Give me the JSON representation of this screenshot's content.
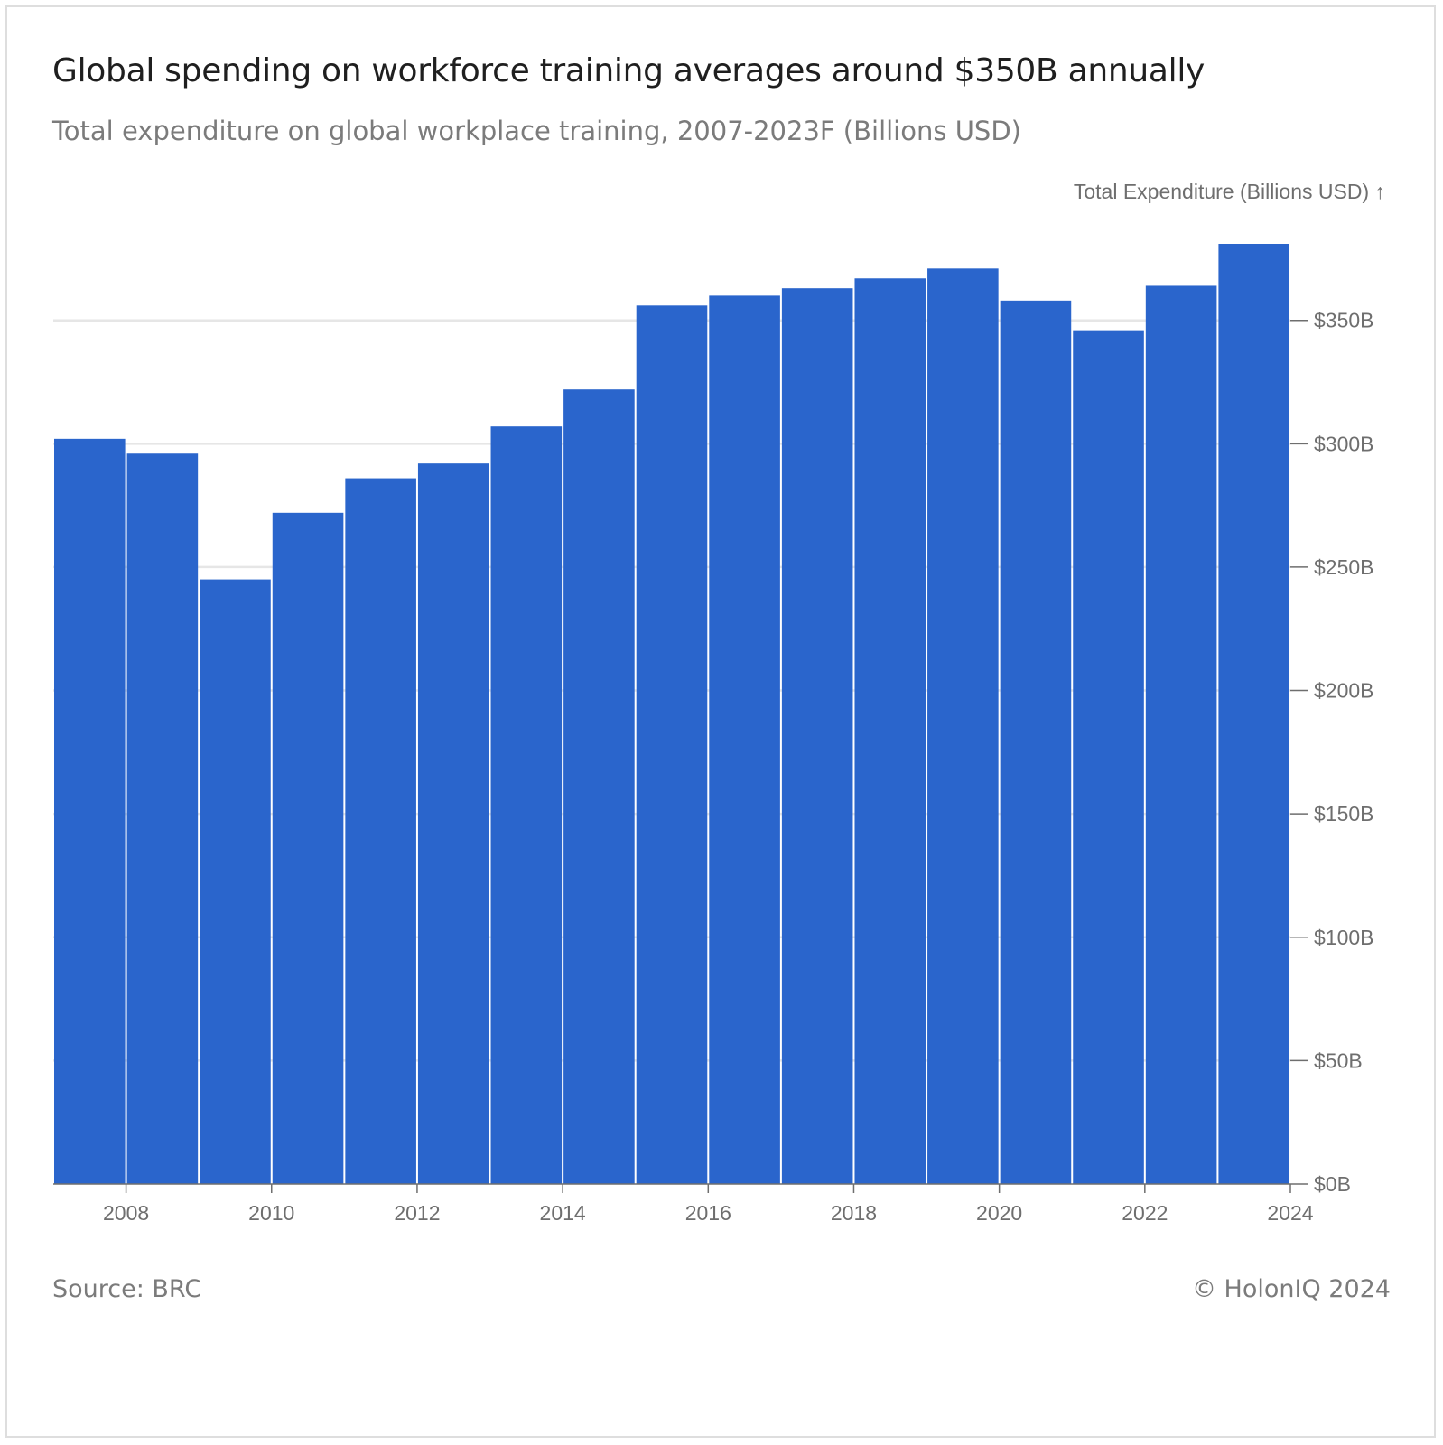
{
  "title": "Global spending on workforce training averages around $350B annually",
  "subtitle": "Total expenditure on global workplace training, 2007-2023F (Billions USD)",
  "footer": {
    "source": "Source: BRC",
    "credit": "© HolonIQ 2024"
  },
  "colors": {
    "bar": "#2a65cc",
    "grid": "#e6e6e6",
    "axis": "#6e6e6e"
  },
  "chart_data": {
    "type": "bar",
    "ylabel": "Total Expenditure (Billions USD) ↑",
    "x": [
      2007,
      2008,
      2009,
      2010,
      2011,
      2012,
      2013,
      2014,
      2015,
      2016,
      2017,
      2018,
      2019,
      2020,
      2021,
      2022,
      2023
    ],
    "values": [
      302,
      296,
      245,
      272,
      286,
      292,
      307,
      322,
      356,
      360,
      363,
      367,
      371,
      358,
      346,
      364,
      381
    ],
    "ylim": [
      0,
      381
    ],
    "xlim": [
      2007,
      2024
    ],
    "y_ticks": [
      0,
      50,
      100,
      150,
      200,
      250,
      300,
      350
    ],
    "y_tick_labels": [
      "$0B",
      "$50B",
      "$100B",
      "$150B",
      "$200B",
      "$250B",
      "$300B",
      "$350B"
    ],
    "x_ticks": [
      2008,
      2010,
      2012,
      2014,
      2016,
      2018,
      2020,
      2022,
      2024
    ],
    "x_tick_labels": [
      "2008",
      "2010",
      "2012",
      "2014",
      "2016",
      "2018",
      "2020",
      "2022",
      "2024"
    ],
    "grid": true,
    "y_axis_position": "right"
  }
}
